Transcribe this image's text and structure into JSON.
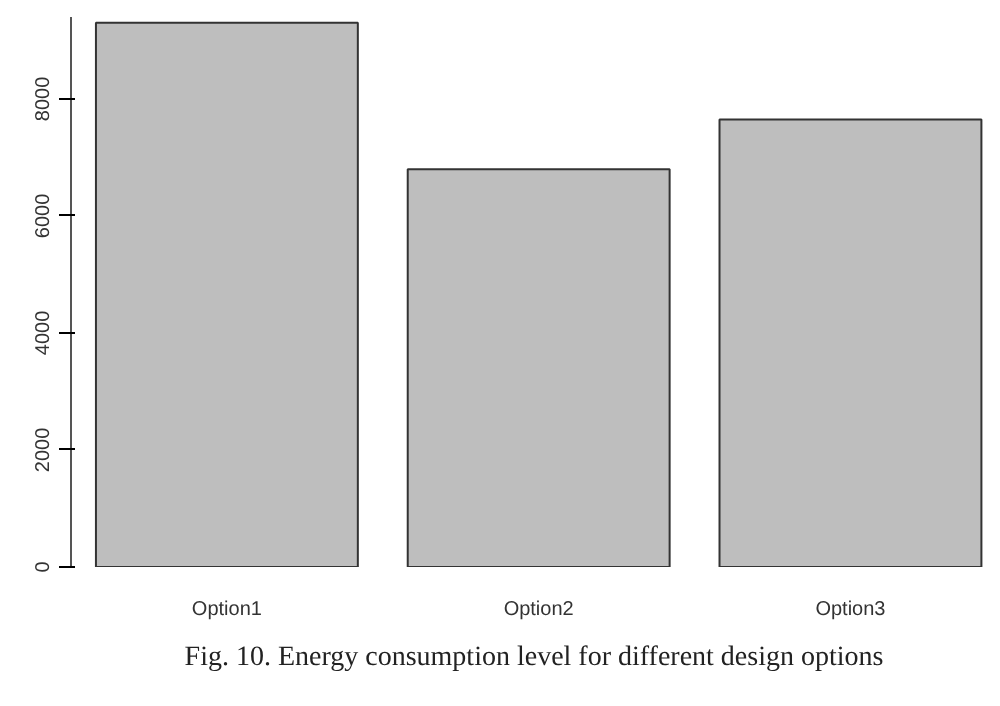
{
  "chart_data": {
    "type": "bar",
    "categories": [
      "Option1",
      "Option2",
      "Option3"
    ],
    "values": [
      9300,
      6800,
      7650
    ],
    "color": "#bebebe",
    "ylim": [
      0,
      9400
    ],
    "yticks": [
      0,
      2000,
      4000,
      6000,
      8000
    ],
    "grid": false,
    "annotations": [
      "Fig. 10. Energy consumption level for different design options"
    ]
  }
}
